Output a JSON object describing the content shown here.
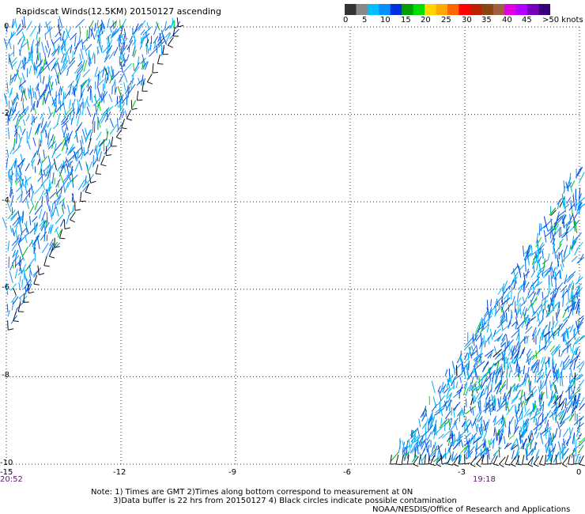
{
  "title": "Rapidscat Winds(12.5KM) 20150127 ascending",
  "legend": {
    "labels": [
      "0",
      "5",
      "10",
      "15",
      "20",
      "25",
      "30",
      "35",
      "40",
      "45",
      ">50 knots"
    ],
    "colors": [
      "#333333",
      "#888888",
      "#00bfff",
      "#0090ff",
      "#0030e0",
      "#00a000",
      "#00e000",
      "#ffd700",
      "#ffaa00",
      "#ff6600",
      "#ff0000",
      "#bb2200",
      "#8b4513",
      "#a06040",
      "#e000e0",
      "#b000ff",
      "#7700bb",
      "#3a007a"
    ]
  },
  "axes": {
    "y_ticks": [
      "0",
      "-2",
      "-4",
      "-6",
      "-8",
      "-10"
    ],
    "x_ticks": [
      "-15",
      "-12",
      "-9",
      "-6",
      "-3",
      "0"
    ]
  },
  "times": {
    "left": "20:52",
    "right": "19:18"
  },
  "notes": {
    "line1": "Note: 1) Times are GMT 2)Times along bottom correspond to measurement at 0N",
    "line2": "3)Data buffer is 22 hrs from 20150127 4) Black circles indicate possible contamination",
    "line3": "NOAA/NESDIS/Office of Research and Applications"
  },
  "chart_data": {
    "type": "scatter",
    "title": "Rapidscat Winds(12.5KM) 20150127 ascending",
    "xlabel": "",
    "ylabel": "",
    "xlim": [
      -15,
      0
    ],
    "ylim": [
      -10,
      0
    ],
    "grid": true,
    "swaths": [
      {
        "time": "20:52",
        "corners": [
          [
            -15,
            0
          ],
          [
            -10.5,
            0
          ],
          [
            -15,
            -7
          ]
        ]
      },
      {
        "time": "19:18",
        "corners": [
          [
            0,
            -3.2
          ],
          [
            0,
            -10
          ],
          [
            -5,
            -10
          ]
        ]
      }
    ]
  }
}
